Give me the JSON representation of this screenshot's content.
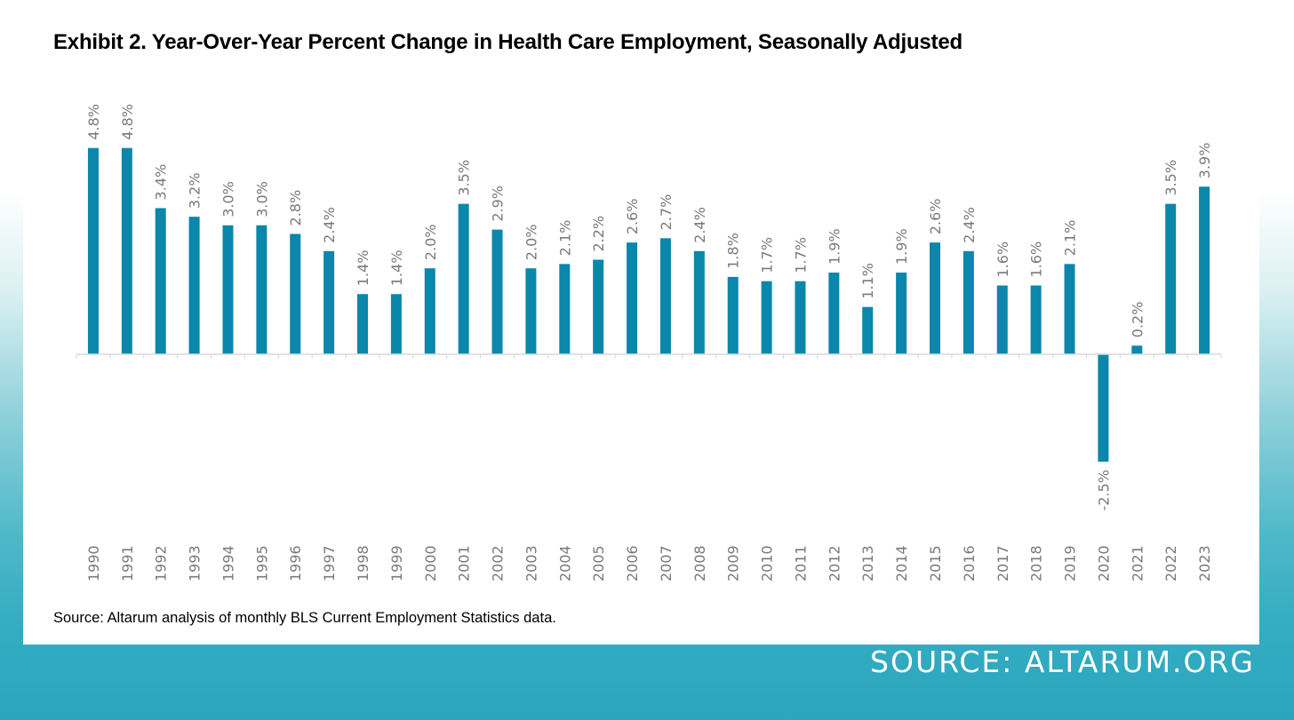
{
  "chart_data": {
    "type": "bar",
    "title": "Exhibit 2. Year-Over-Year Percent Change in Health Care Employment, Seasonally Adjusted",
    "categories": [
      "1990",
      "1991",
      "1992",
      "1993",
      "1994",
      "1995",
      "1996",
      "1997",
      "1998",
      "1999",
      "2000",
      "2001",
      "2002",
      "2003",
      "2004",
      "2005",
      "2006",
      "2007",
      "2008",
      "2009",
      "2010",
      "2011",
      "2012",
      "2013",
      "2014",
      "2015",
      "2016",
      "2017",
      "2018",
      "2019",
      "2020",
      "2021",
      "2022",
      "2023"
    ],
    "values": [
      4.8,
      4.8,
      3.4,
      3.2,
      3.0,
      3.0,
      2.8,
      2.4,
      1.4,
      1.4,
      2.0,
      3.5,
      2.9,
      2.0,
      2.1,
      2.2,
      2.6,
      2.7,
      2.4,
      1.8,
      1.7,
      1.7,
      1.9,
      1.1,
      1.9,
      2.6,
      2.4,
      1.6,
      1.6,
      2.1,
      -2.5,
      0.2,
      3.5,
      3.9
    ],
    "value_labels": [
      "4.8%",
      "4.8%",
      "3.4%",
      "3.2%",
      "3.0%",
      "3.0%",
      "2.8%",
      "2.4%",
      "1.4%",
      "1.4%",
      "2.0%",
      "3.5%",
      "2.9%",
      "2.0%",
      "2.1%",
      "2.2%",
      "2.6%",
      "2.7%",
      "2.4%",
      "1.8%",
      "1.7%",
      "1.7%",
      "1.9%",
      "1.1%",
      "1.9%",
      "2.6%",
      "2.4%",
      "1.6%",
      "1.6%",
      "2.1%",
      "-2.5%",
      "0.2%",
      "3.5%",
      "3.9%"
    ],
    "ylim": [
      -2.5,
      4.8
    ],
    "unit": "%",
    "grid": false,
    "legend": "none",
    "bar_color": "#0a87ab",
    "axis_color": "#d9d9d9",
    "label_color": "#7a7a7a"
  },
  "source_note": "Source: Altarum analysis of monthly BLS Current Employment Statistics data.",
  "watermark": "SOURCE: ALTARUM.ORG"
}
